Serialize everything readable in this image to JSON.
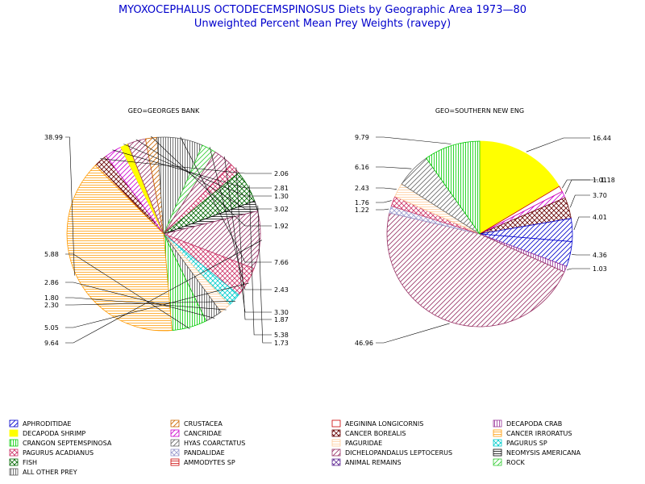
{
  "title": "MYOXOCEPHALUS OCTODECEMSPINOSUS Diets by Geographic Area 1973—80",
  "subtitle": "Unweighted Percent Mean Prey Weights (ravepy)",
  "legend": [
    {
      "key": "aphroditidae",
      "label": "APHRODITIDAE",
      "color": "#0000cc",
      "pattern": "diag-up"
    },
    {
      "key": "crustacea",
      "label": "CRUSTACEA",
      "color": "#cc6600",
      "pattern": "diag-up"
    },
    {
      "key": "aeginina",
      "label": "AEGININA LONGICORNIS",
      "color": "#cc0000",
      "pattern": "empty"
    },
    {
      "key": "decapoda-crab",
      "label": "DECAPODA CRAB",
      "color": "#993399",
      "pattern": "vert"
    },
    {
      "key": "decapoda-shrimp",
      "label": "DECAPODA SHRIMP",
      "color": "#ffff00",
      "pattern": "solid"
    },
    {
      "key": "cancridae",
      "label": "CANCRIDAE",
      "color": "#cc00cc",
      "pattern": "diag-up"
    },
    {
      "key": "cancer-borealis",
      "label": "CANCER BOREALIS",
      "color": "#660000",
      "pattern": "cross"
    },
    {
      "key": "cancer-irroratus",
      "label": "CANCER IRRORATUS",
      "color": "#ff9900",
      "pattern": "horiz"
    },
    {
      "key": "crangon",
      "label": "CRANGON SEPTEMSPINOSA",
      "color": "#00cc00",
      "pattern": "vert"
    },
    {
      "key": "hyas",
      "label": "HYAS COARCTATUS",
      "color": "#666666",
      "pattern": "diag-up"
    },
    {
      "key": "paguridae",
      "label": "PAGURIDAE",
      "color": "#ffcc99",
      "pattern": "horiz"
    },
    {
      "key": "pagurus-sp",
      "label": "PAGURUS SP",
      "color": "#00cccc",
      "pattern": "cross"
    },
    {
      "key": "pagurus-acadianus",
      "label": "PAGURUS ACADIANUS",
      "color": "#cc3366",
      "pattern": "cross"
    },
    {
      "key": "pandalidae",
      "label": "PANDALIDAE",
      "color": "#9999cc",
      "pattern": "cross"
    },
    {
      "key": "dichelopandalus",
      "label": "DICHELOPANDALUS LEPTOCERUS",
      "color": "#993366",
      "pattern": "diag-up"
    },
    {
      "key": "neomysis",
      "label": "NEOMYSIS AMERICANA",
      "color": "#000000",
      "pattern": "horiz"
    },
    {
      "key": "fish",
      "label": "FISH",
      "color": "#006600",
      "pattern": "cross"
    },
    {
      "key": "ammodytes",
      "label": "AMMODYTES SP",
      "color": "#cc0000",
      "pattern": "horiz"
    },
    {
      "key": "animal-remains",
      "label": "ANIMAL REMAINS",
      "color": "#663399",
      "pattern": "cross"
    },
    {
      "key": "rock",
      "label": "ROCK",
      "color": "#33cc33",
      "pattern": "diag-up"
    },
    {
      "key": "all-other",
      "label": "ALL OTHER PREY",
      "color": "#555555",
      "pattern": "vert"
    }
  ],
  "chart_data": [
    {
      "type": "pie",
      "title": "GEO=GEORGES BANK",
      "slices": [
        {
          "key": "crustacea",
          "value": 0.33
        },
        {
          "key": "cancer-borealis",
          "value": 2.06
        },
        {
          "key": "cancridae",
          "value": 2.81
        },
        {
          "key": "decapoda-shrimp",
          "value": 1.3
        },
        {
          "key": "dichelopandalus",
          "value": 3.02
        },
        {
          "key": "crustacea",
          "value": 1.92
        },
        {
          "key": "all-other",
          "value": 7.66
        },
        {
          "key": "rock",
          "value": 2.43
        },
        {
          "key": "dichelopandalus",
          "value": 3.3
        },
        {
          "key": "pagurus-acadianus",
          "value": 1.87
        },
        {
          "key": "fish",
          "value": 5.38
        },
        {
          "key": "neomysis",
          "value": 1.73
        },
        {
          "key": "dichelopandalus",
          "value": 9.64
        },
        {
          "key": "pagurus-acadianus",
          "value": 5.05
        },
        {
          "key": "pagurus-sp",
          "value": 2.3
        },
        {
          "key": "paguridae",
          "value": 1.8
        },
        {
          "key": "all-other",
          "value": 2.86
        },
        {
          "key": "crangon",
          "value": 5.88
        },
        {
          "key": "cancer-irroratus",
          "value": 38.99
        }
      ],
      "labels": [
        {
          "text": "38.99"
        },
        {
          "text": "2.06"
        },
        {
          "text": "2.81"
        },
        {
          "text": "1.30"
        },
        {
          "text": "3.02"
        },
        {
          "text": "1.92"
        },
        {
          "text": "7.66"
        },
        {
          "text": "2.43"
        },
        {
          "text": "3.30"
        },
        {
          "text": "1.87"
        },
        {
          "text": "5.38"
        },
        {
          "text": "1.73"
        },
        {
          "text": "5.88"
        },
        {
          "text": "2.86"
        },
        {
          "text": "1.80"
        },
        {
          "text": "2.30"
        },
        {
          "text": "5.05"
        },
        {
          "text": "9.64"
        }
      ]
    },
    {
      "type": "pie",
      "title": "GEO=SOUTHERN NEW ENG",
      "slices": [
        {
          "key": "decapoda-shrimp",
          "value": 16.44
        },
        {
          "key": "aeginina",
          "value": 1.01
        },
        {
          "key": "cancridae",
          "value": 1.18
        },
        {
          "key": "cancer-borealis",
          "value": 3.7
        },
        {
          "key": "aphroditidae",
          "value": 4.01
        },
        {
          "key": "aphroditidae",
          "value": 4.36
        },
        {
          "key": "decapoda-crab",
          "value": 1.03
        },
        {
          "key": "dichelopandalus",
          "value": 46.96
        },
        {
          "key": "pandalidae",
          "value": 1.22
        },
        {
          "key": "pagurus-acadianus",
          "value": 1.76
        },
        {
          "key": "paguridae",
          "value": 2.43
        },
        {
          "key": "hyas",
          "value": 6.16
        },
        {
          "key": "crangon",
          "value": 9.79
        }
      ],
      "labels": [
        {
          "text": "16.44"
        },
        {
          "text": "1.01"
        },
        {
          "text": "1.18"
        },
        {
          "text": "3.70"
        },
        {
          "text": "4.01"
        },
        {
          "text": "4.36"
        },
        {
          "text": "1.03"
        },
        {
          "text": "46.96"
        },
        {
          "text": "1.22"
        },
        {
          "text": "1.76"
        },
        {
          "text": "2.43"
        },
        {
          "text": "6.16"
        },
        {
          "text": "9.79"
        }
      ]
    }
  ]
}
